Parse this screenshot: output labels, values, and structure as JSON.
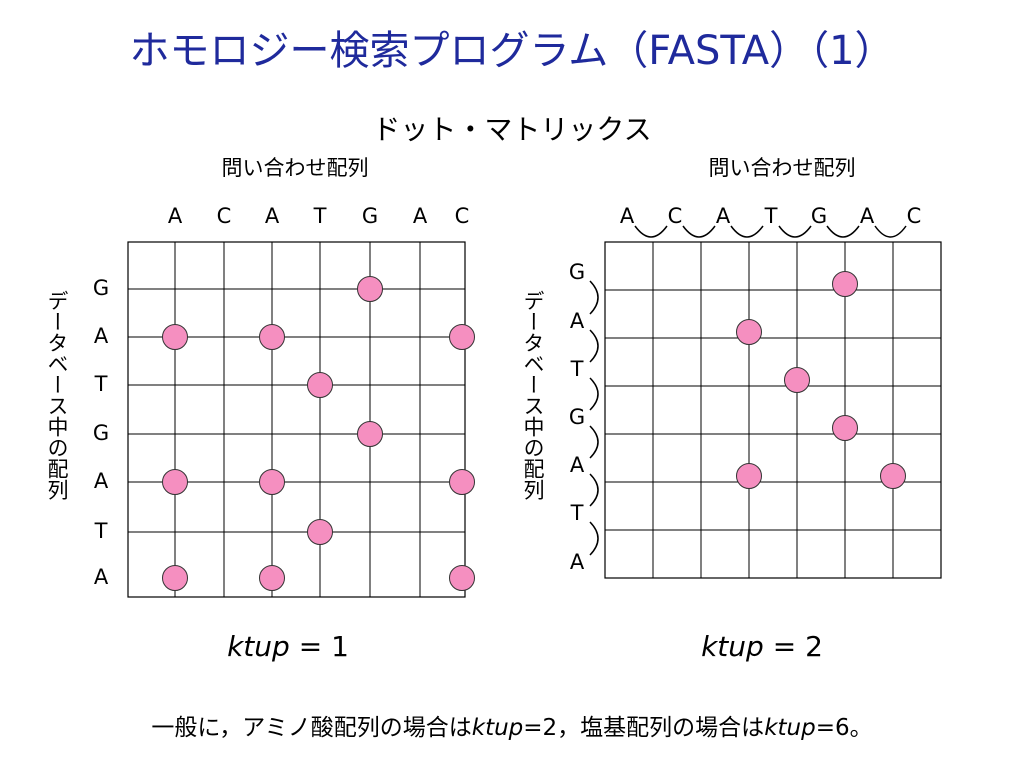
{
  "title": "ホモロジー検索プログラム（FASTA）（1）",
  "subtitle": "ドット・マトリックス",
  "query_axis_label": "問い合わせ配列",
  "db_axis_label": "データベース中の配列",
  "query_sequence": [
    "A",
    "C",
    "A",
    "T",
    "G",
    "A",
    "C"
  ],
  "db_sequence": [
    "G",
    "A",
    "T",
    "G",
    "A",
    "T",
    "A"
  ],
  "ktup_label": "ktup",
  "left_panel": {
    "ktup_value": "= 1",
    "dots": [
      [
        0,
        4
      ],
      [
        1,
        0
      ],
      [
        1,
        2
      ],
      [
        1,
        6
      ],
      [
        2,
        3
      ],
      [
        3,
        4
      ],
      [
        4,
        0
      ],
      [
        4,
        2
      ],
      [
        4,
        6
      ],
      [
        5,
        3
      ],
      [
        6,
        0
      ],
      [
        6,
        2
      ],
      [
        6,
        6
      ]
    ]
  },
  "right_panel": {
    "ktup_value": "= 2",
    "dots": [
      [
        0,
        5
      ],
      [
        1,
        3
      ],
      [
        2,
        4
      ],
      [
        3,
        5
      ],
      [
        4,
        3
      ],
      [
        4,
        6
      ]
    ]
  },
  "footer": {
    "part1": "一般に，アミノ酸配列の場合は",
    "ktup1": "ktup",
    "part2": "=2，塩基配列の場合は",
    "ktup2": "ktup",
    "part3": "=6。"
  },
  "colors": {
    "title": "#1f2a9c",
    "dot_fill": "#f58fc0",
    "grid": "#000000"
  }
}
